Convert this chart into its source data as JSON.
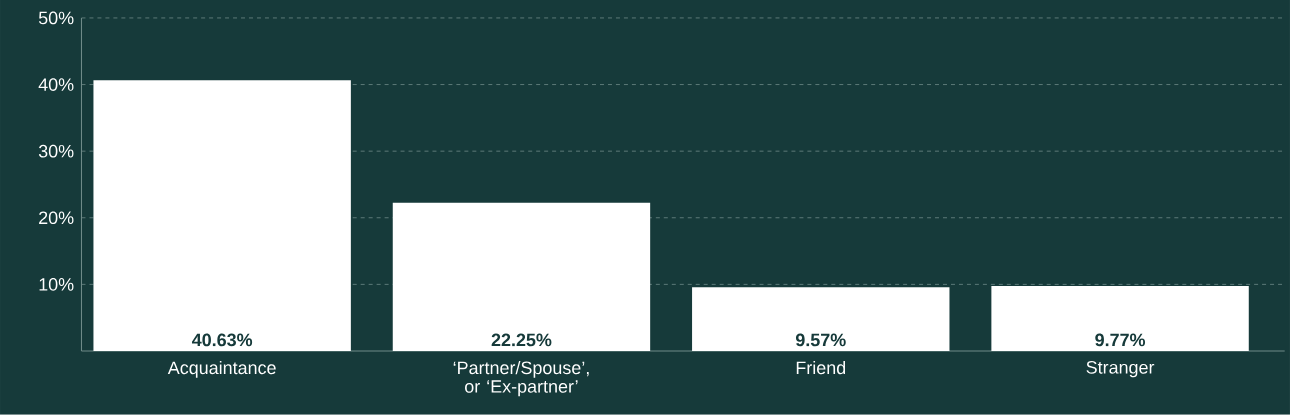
{
  "chart_data": {
    "type": "bar",
    "categories": [
      "Acquaintance",
      "‘Partner/Spouse’, or ‘Ex-partner’",
      "Friend",
      "Stranger"
    ],
    "values": [
      40.63,
      22.25,
      9.57,
      9.77
    ],
    "value_labels": [
      "40.63%",
      "22.25%",
      "9.57%",
      "9.77%"
    ],
    "color": "#ffffff",
    "ylim": [
      0,
      50
    ],
    "yticks": [
      {
        "value": 10,
        "label": "10%"
      },
      {
        "value": 20,
        "label": "20%"
      },
      {
        "value": 30,
        "label": "30%"
      },
      {
        "value": 40,
        "label": "40%"
      },
      {
        "value": 50,
        "label": "50%"
      }
    ],
    "grid": "y"
  }
}
